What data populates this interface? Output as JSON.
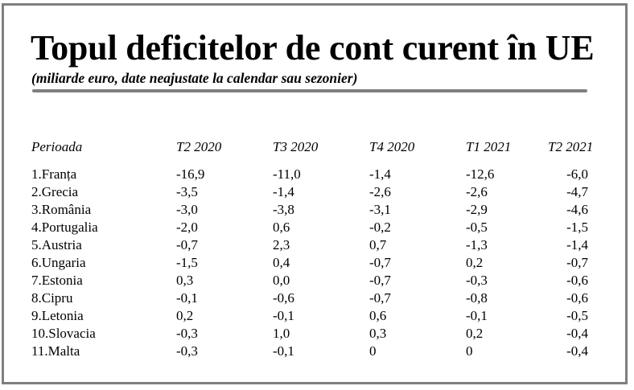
{
  "title": "Topul deficitelor de cont curent în UE",
  "subtitle": "(miliarde euro, date neajustate la calendar sau sezonier)",
  "table": {
    "headers": [
      "Perioada",
      "T2 2020",
      "T3 2020",
      "T4 2020",
      "T1 2021",
      "T2 2021"
    ],
    "rows": [
      [
        "1.Franța",
        "-16,9",
        "-11,0",
        "-1,4",
        "-12,6",
        "-6,0"
      ],
      [
        "2.Grecia",
        "-3,5",
        "-1,4",
        "-2,6",
        "-2,6",
        "-4,7"
      ],
      [
        "3.România",
        "-3,0",
        "-3,8",
        "-3,1",
        "-2,9",
        "-4,6"
      ],
      [
        "4.Portugalia",
        "-2,0",
        "0,6",
        "-0,2",
        "-0,5",
        "-1,5"
      ],
      [
        "5.Austria",
        "-0,7",
        "2,3",
        "0,7",
        "-1,3",
        "-1,4"
      ],
      [
        "6.Ungaria",
        "-1,5",
        "0,4",
        "-0,7",
        "0,2",
        "-0,7"
      ],
      [
        "7.Estonia",
        "0,3",
        "0,0",
        "-0,7",
        "-0,3",
        "-0,6"
      ],
      [
        "8.Cipru",
        "-0,1",
        "-0,6",
        "-0,7",
        "-0,8",
        "-0,6"
      ],
      [
        "9.Letonia",
        "0,2",
        "-0,1",
        "0,6",
        "-0,1",
        "-0,5"
      ],
      [
        "10.Slovacia",
        "-0,3",
        "1,0",
        "0,3",
        "0,2",
        "-0,4"
      ],
      [
        "11.Malta",
        "-0,3",
        "-0,1",
        "0",
        "0",
        "-0,4"
      ]
    ]
  }
}
